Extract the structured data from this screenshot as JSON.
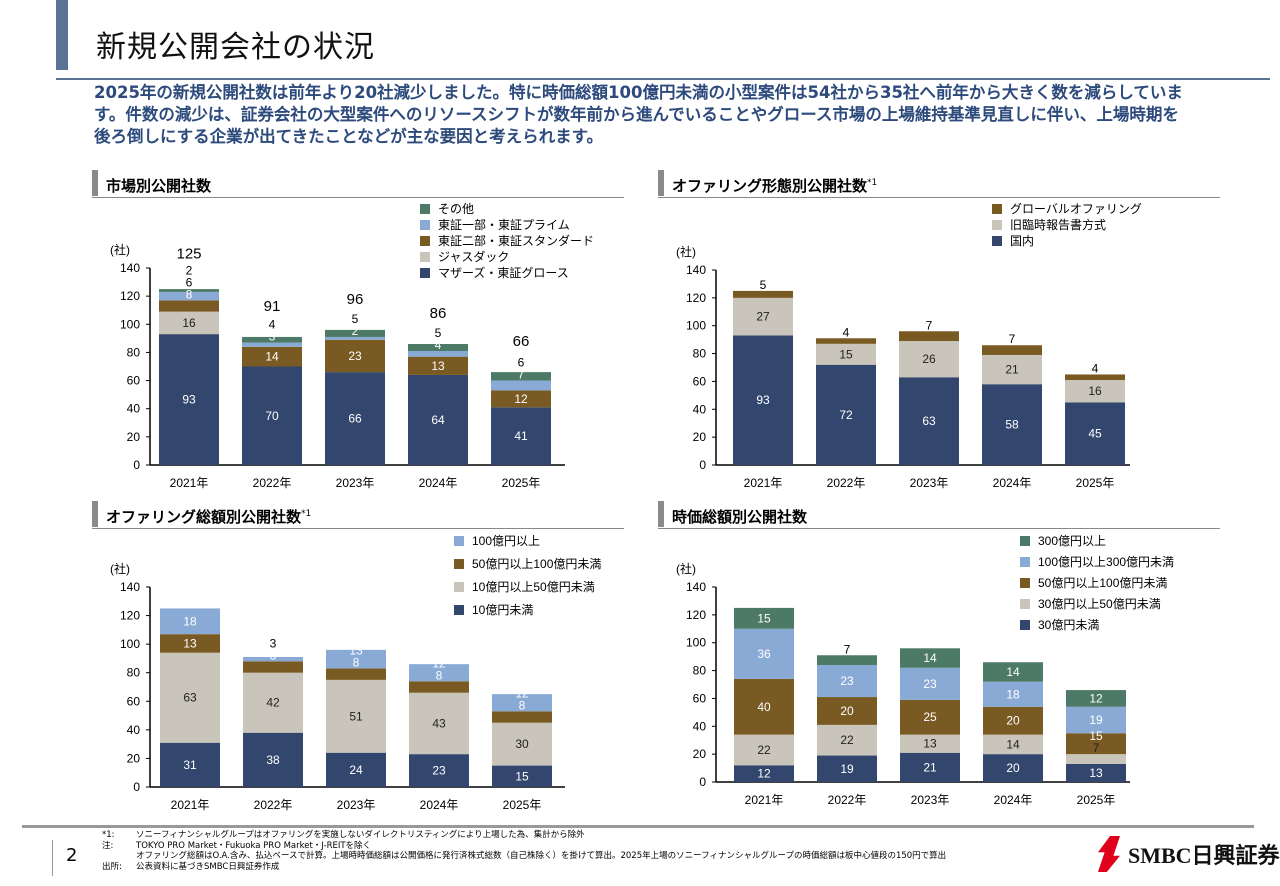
{
  "header": {
    "title": "新規公開会社の状況",
    "lead": "2025年の新規公開社数は前年より20社減少しました。特に時価総額100億円未満の小型案件は54社から35社へ前年から大きく数を減らしています。件数の減少は、証券会社の大型案件へのリソースシフトが数年前から進んでいることやグロース市場の上場維持基準見直しに伴い、上場時期を後ろ倒しにする企業が出てきたことなどが主な要因と考えられます。"
  },
  "sections": [
    {
      "title": "市場別公開社数",
      "sup": ""
    },
    {
      "title": "オファリング形態別公開社数",
      "sup": "*1"
    },
    {
      "title": "オファリング総額別公開社数",
      "sup": "*1"
    },
    {
      "title": "時価総額別公開社数",
      "sup": ""
    }
  ],
  "chart_data": [
    {
      "type": "bar",
      "stacked": true,
      "unit": "(社)",
      "ylim": [
        0,
        140
      ],
      "yticks": [
        0,
        20,
        40,
        60,
        80,
        100,
        120,
        140
      ],
      "categories": [
        "2021年",
        "2022年",
        "2023年",
        "2024年",
        "2025年"
      ],
      "totals": [
        125,
        91,
        96,
        86,
        66
      ],
      "legend_position": "top-right",
      "series": [
        {
          "name": "マザーズ・東証グロース",
          "color": "#32466e",
          "values": [
            93,
            70,
            66,
            64,
            41
          ]
        },
        {
          "name": "ジャスダック",
          "color": "#c9c5bb",
          "values": [
            16,
            0,
            0,
            0,
            0
          ]
        },
        {
          "name": "東証二部・東証スタンダード",
          "color": "#7a5a23",
          "values": [
            8,
            14,
            23,
            13,
            12
          ]
        },
        {
          "name": "東証一部・東証プライム",
          "color": "#8aaad6",
          "values": [
            6,
            3,
            2,
            4,
            7
          ]
        },
        {
          "name": "その他",
          "color": "#4d7a67",
          "values": [
            2,
            4,
            5,
            5,
            6
          ]
        }
      ]
    },
    {
      "type": "bar",
      "stacked": true,
      "unit": "(社)",
      "ylim": [
        0,
        140
      ],
      "yticks": [
        0,
        20,
        40,
        60,
        80,
        100,
        120,
        140
      ],
      "categories": [
        "2021年",
        "2022年",
        "2023年",
        "2024年",
        "2025年"
      ],
      "legend_position": "top-right",
      "series": [
        {
          "name": "国内",
          "color": "#32466e",
          "values": [
            93,
            72,
            63,
            58,
            45
          ]
        },
        {
          "name": "旧臨時報告書方式",
          "color": "#c9c5bb",
          "values": [
            27,
            15,
            26,
            21,
            16
          ]
        },
        {
          "name": "グローバルオファリング",
          "color": "#7a5a23",
          "values": [
            5,
            4,
            7,
            7,
            4
          ]
        }
      ]
    },
    {
      "type": "bar",
      "stacked": true,
      "unit": "(社)",
      "ylim": [
        0,
        140
      ],
      "yticks": [
        0,
        20,
        40,
        60,
        80,
        100,
        120,
        140
      ],
      "categories": [
        "2021年",
        "2022年",
        "2023年",
        "2024年",
        "2025年"
      ],
      "legend_position": "top-right",
      "series": [
        {
          "name": "10億円未満",
          "color": "#32466e",
          "values": [
            31,
            38,
            24,
            23,
            15
          ]
        },
        {
          "name": "10億円以上50億円未満",
          "color": "#c9c5bb",
          "values": [
            63,
            42,
            51,
            43,
            30
          ]
        },
        {
          "name": "50億円以上100億円未満",
          "color": "#7a5a23",
          "values": [
            13,
            8,
            8,
            8,
            8
          ]
        },
        {
          "name": "100億円以上",
          "color": "#8aaad6",
          "values": [
            18,
            3,
            13,
            12,
            12
          ]
        }
      ]
    },
    {
      "type": "bar",
      "stacked": true,
      "unit": "(社)",
      "ylim": [
        0,
        140
      ],
      "yticks": [
        0,
        20,
        40,
        60,
        80,
        100,
        120,
        140
      ],
      "categories": [
        "2021年",
        "2022年",
        "2023年",
        "2024年",
        "2025年"
      ],
      "legend_position": "top-right",
      "series": [
        {
          "name": "30億円未満",
          "color": "#32466e",
          "values": [
            12,
            19,
            21,
            20,
            13
          ]
        },
        {
          "name": "30億円以上50億円未満",
          "color": "#c9c5bb",
          "values": [
            22,
            22,
            13,
            14,
            7
          ]
        },
        {
          "name": "50億円以上100億円未満",
          "color": "#7a5a23",
          "values": [
            40,
            20,
            25,
            20,
            15
          ]
        },
        {
          "name": "100億円以上300億円未満",
          "color": "#8aaad6",
          "values": [
            36,
            23,
            23,
            18,
            19
          ]
        },
        {
          "name": "300億円以上",
          "color": "#4d7a67",
          "values": [
            15,
            7,
            14,
            14,
            12
          ]
        }
      ]
    }
  ],
  "footer": {
    "page": "2",
    "notes": [
      {
        "k": "*1:",
        "t": "ソニーフィナンシャルグループはオファリングを実施しないダイレクトリスティングにより上場した為、集計から除外"
      },
      {
        "k": "注:",
        "t": "TOKYO PRO Market・Fukuoka PRO Market・J-REITを除く"
      },
      {
        "k": "",
        "t": "オファリング総額はO.A.含み、払込ベースで計算。上場時時価総額は公開価格に発行済株式総数（自己株除く）を掛けて算出。2025年上場のソニーフィナンシャルグループの時価総額は板中心値段の150円で算出"
      },
      {
        "k": "出所:",
        "t": "公表資料に基づきSMBC日興証券作成"
      }
    ],
    "logo": "SMBC日興証券"
  }
}
